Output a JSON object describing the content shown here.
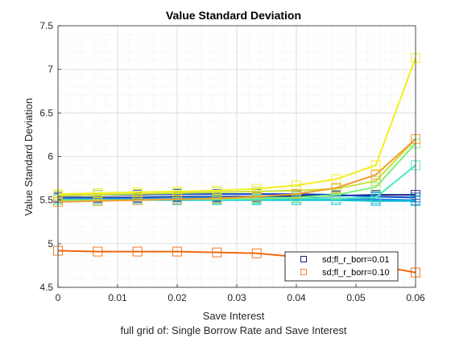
{
  "chart_data": {
    "type": "line",
    "title": "Value Standard Deviation",
    "xlabel": "Save Interest",
    "ylabel": "Value Standard Deviation",
    "subtitle": "full grid of: Single Borrow Rate and Save Interest",
    "xlim": [
      0,
      0.06
    ],
    "ylim": [
      4.5,
      7.5
    ],
    "xticks": [
      0,
      0.01,
      0.02,
      0.03,
      0.04,
      0.05,
      0.06
    ],
    "xtick_labels": [
      "0",
      "0.01",
      "0.02",
      "0.03",
      "0.04",
      "0.05",
      "0.06"
    ],
    "yticks": [
      4.5,
      5,
      5.5,
      6,
      6.5,
      7,
      7.5
    ],
    "ytick_labels": [
      "4.5",
      "5",
      "5.5",
      "6",
      "6.5",
      "7",
      "7.5"
    ],
    "grid": true,
    "marker": "square",
    "legend": {
      "placement": "bottom-right",
      "entries": [
        {
          "label": "sd;fl_r_borr=0.01",
          "color": "#1a237e"
        },
        {
          "label": "sd;fl_r_borr=0.10",
          "color": "#ff7f3f"
        }
      ]
    },
    "x": [
      0,
      0.00667,
      0.01333,
      0.02,
      0.02667,
      0.03333,
      0.04,
      0.04667,
      0.05333,
      0.06
    ],
    "series": [
      {
        "color": "#1a237e",
        "values": [
          5.53,
          5.53,
          5.53,
          5.54,
          5.54,
          5.54,
          5.55,
          5.55,
          5.56,
          5.56
        ]
      },
      {
        "color": "#0d47c9",
        "values": [
          5.55,
          5.56,
          5.56,
          5.57,
          5.57,
          5.57,
          5.57,
          5.56,
          5.54,
          5.53
        ]
      },
      {
        "color": "#1e88e5",
        "values": [
          5.52,
          5.52,
          5.52,
          5.53,
          5.53,
          5.53,
          5.53,
          5.52,
          5.51,
          5.5
        ]
      },
      {
        "color": "#00bcd4",
        "values": [
          5.5,
          5.5,
          5.5,
          5.5,
          5.5,
          5.5,
          5.5,
          5.5,
          5.49,
          5.49
        ]
      },
      {
        "color": "#4ee8c0",
        "values": [
          5.5,
          5.5,
          5.5,
          5.51,
          5.51,
          5.51,
          5.52,
          5.52,
          5.53,
          5.9
        ]
      },
      {
        "color": "#7cf078",
        "values": [
          5.5,
          5.5,
          5.5,
          5.51,
          5.51,
          5.52,
          5.53,
          5.56,
          5.65,
          6.15
        ]
      },
      {
        "color": "#c9e03a",
        "values": [
          5.55,
          5.56,
          5.57,
          5.58,
          5.59,
          5.6,
          5.61,
          5.63,
          5.72,
          6.2
        ]
      },
      {
        "color": "#f2ef1e",
        "values": [
          5.57,
          5.58,
          5.59,
          5.6,
          5.61,
          5.63,
          5.67,
          5.74,
          5.9,
          7.13
        ]
      },
      {
        "color": "#f0a030",
        "values": [
          5.48,
          5.49,
          5.5,
          5.51,
          5.52,
          5.54,
          5.57,
          5.64,
          5.79,
          6.2
        ]
      },
      {
        "color": "#f06a10",
        "values": [
          4.92,
          4.91,
          4.91,
          4.91,
          4.9,
          4.89,
          4.85,
          4.8,
          4.75,
          4.67
        ]
      }
    ]
  }
}
